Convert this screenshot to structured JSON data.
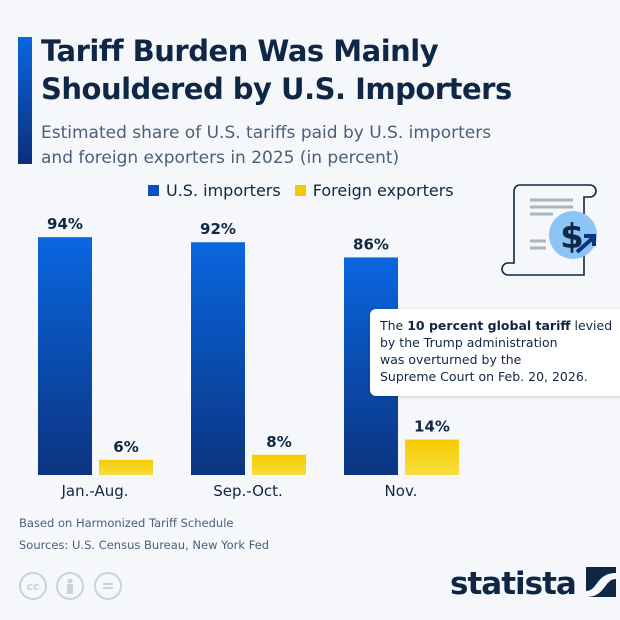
{
  "title_line1": "Tariff Burden Was Mainly",
  "title_line2": "Shouldered by U.S. Importers",
  "subtitle_line1": "Estimated share of U.S. tariffs paid by U.S. importers",
  "subtitle_line2": "and foreign exporters in 2025 (in percent)",
  "colors": {
    "importers": "#0a5cd8",
    "exporters": "#f5c800",
    "text": "#0f2744"
  },
  "chart_data": {
    "type": "bar",
    "categories": [
      "Jan.-Aug.",
      "Sep.-Oct.",
      "Nov."
    ],
    "series": [
      {
        "name": "U.S. importers",
        "values": [
          94,
          92,
          86
        ],
        "labels": [
          "94%",
          "92%",
          "86%"
        ]
      },
      {
        "name": "Foreign exporters",
        "values": [
          6,
          8,
          14
        ],
        "labels": [
          "6%",
          "8%",
          "14%"
        ]
      }
    ],
    "ylim": [
      0,
      100
    ],
    "grid": false,
    "legend": "top"
  },
  "annotation": {
    "pre": "The ",
    "bold": "10 percent global tariff",
    "post": " levied",
    "line2": "by the Trump administration",
    "line3": "was overturned by the",
    "line4": "Supreme Court on Feb. 20, 2026."
  },
  "icon": "tariff-receipt-dollar-icon",
  "footer": {
    "note": "Based on Harmonized Tariff Schedule",
    "sources": "Sources: U.S. Census Bureau, New York Fed",
    "license_icons": [
      "cc-icon",
      "attribution-icon",
      "no-derivatives-icon"
    ],
    "cc_text": "cc",
    "logo": "statista"
  }
}
